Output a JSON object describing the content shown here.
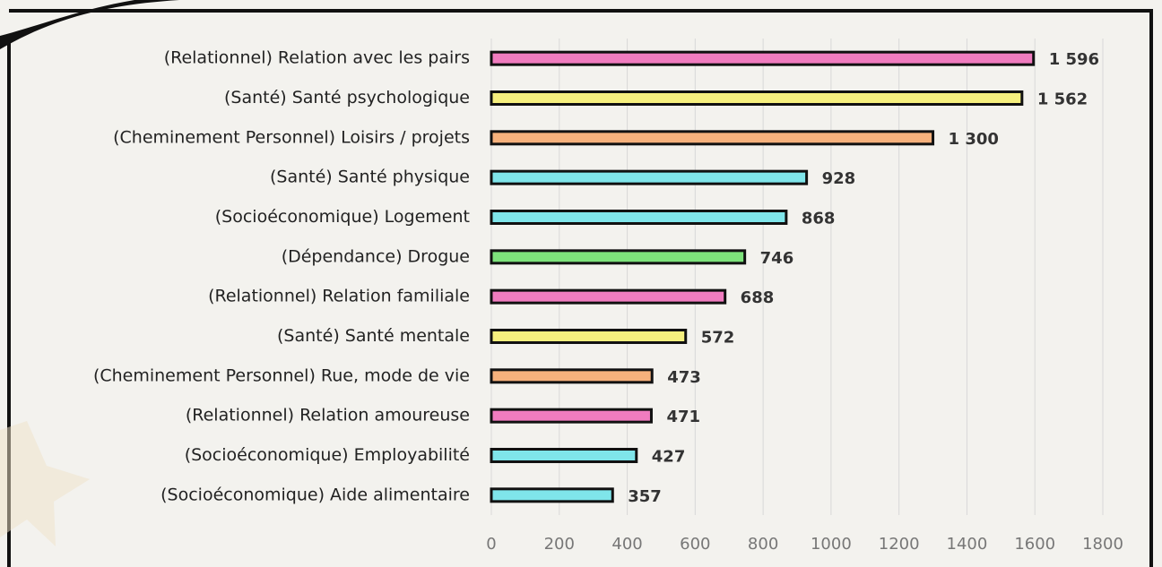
{
  "chart_data": {
    "type": "hbar",
    "categories": [
      "(Relationnel) Relation avec les pairs",
      "(Santé) Santé psychologique",
      "(Cheminement Personnel) Loisirs / projets",
      "(Santé) Santé physique",
      "(Socioéconomique) Logement",
      "(Dépendance) Drogue",
      "(Relationnel) Relation familiale",
      "(Santé) Santé mentale",
      "(Cheminement Personnel) Rue, mode de vie",
      "(Relationnel) Relation amoureuse",
      "(Socioéconomique) Employabilité",
      "(Socioéconomique) Aide alimentaire"
    ],
    "values": [
      1596,
      1562,
      1300,
      928,
      868,
      746,
      688,
      572,
      473,
      471,
      427,
      357
    ],
    "value_labels": [
      "1 596",
      "1 562",
      "1 300",
      "928",
      "868",
      "746",
      "688",
      "572",
      "473",
      "471",
      "427",
      "357"
    ],
    "colors": [
      "#f07cbf",
      "#f6f07e",
      "#f6b17c",
      "#7fe5ea",
      "#7fe5ea",
      "#7de27b",
      "#f07cbf",
      "#f6f07e",
      "#f6b17c",
      "#f07cbf",
      "#7fe5ea",
      "#7fe5ea"
    ],
    "xlim": [
      0,
      1800
    ],
    "xticks": [
      0,
      200,
      400,
      600,
      800,
      1000,
      1200,
      1400,
      1600,
      1800
    ],
    "grid": true
  }
}
